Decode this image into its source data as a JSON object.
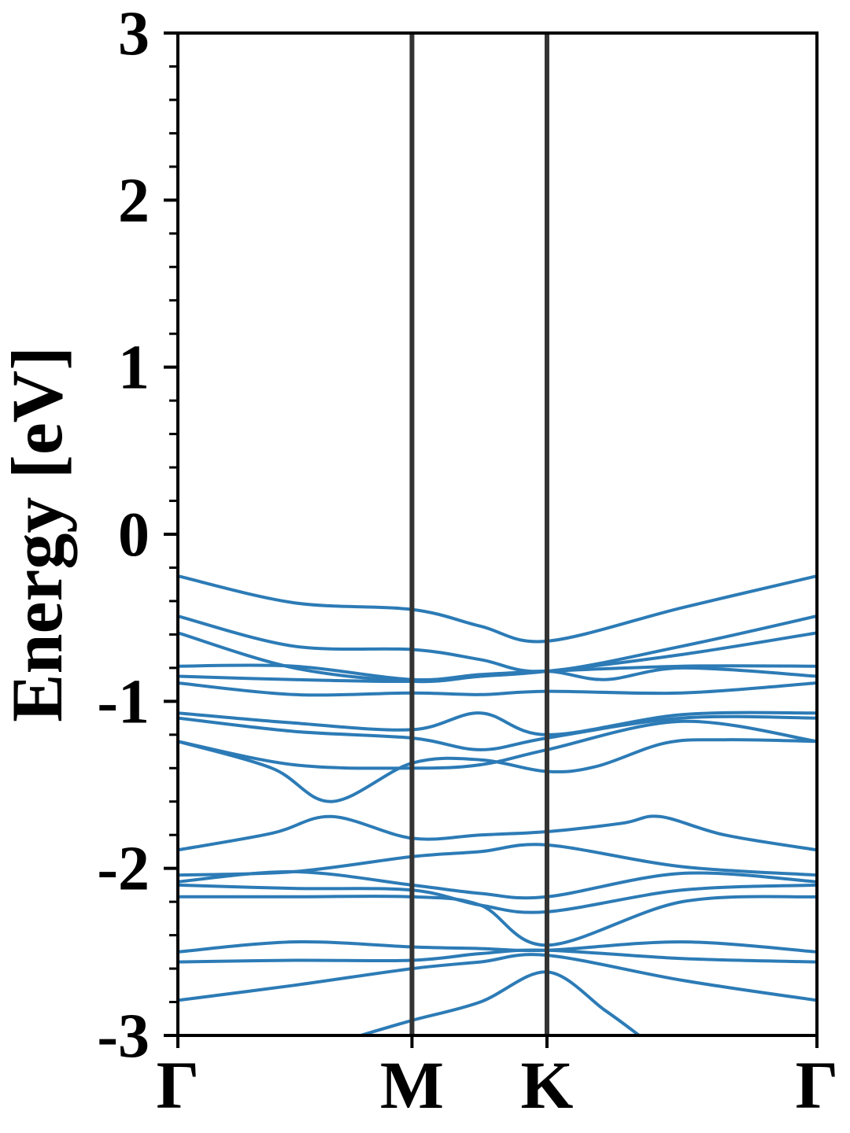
{
  "chart_data": {
    "type": "line",
    "title": "",
    "xlabel": "",
    "ylabel": "Energy [eV]",
    "ylim": [
      -3,
      3
    ],
    "y_major_ticks": [
      -3,
      -2,
      -1,
      0,
      1,
      2,
      3
    ],
    "y_tick_labels": [
      "-3",
      "-2",
      "-1",
      "0",
      "1",
      "2",
      "3"
    ],
    "y_minor_step": 0.2,
    "x_range": [
      0,
      3.74
    ],
    "k_points": [
      {
        "label": "Γ",
        "x": 0
      },
      {
        "label": "M",
        "x": 1.37
      },
      {
        "label": "K",
        "x": 2.16
      },
      {
        "label": "Γ",
        "x": 3.74
      }
    ],
    "grid": false,
    "legend": "none",
    "line_color": "#2c7bb6",
    "divider_color": "#333333",
    "series": [
      {
        "x": [
          0,
          0.68,
          1.37,
          1.77,
          2.16,
          2.95,
          3.74
        ],
        "values": [
          -0.25,
          -0.41,
          -0.45,
          -0.55,
          -0.64,
          -0.44,
          -0.25
        ]
      },
      {
        "x": [
          0,
          0.68,
          1.37,
          1.77,
          2.16,
          2.95,
          3.74
        ],
        "values": [
          -0.49,
          -0.67,
          -0.69,
          -0.75,
          -0.82,
          -0.67,
          -0.49
        ]
      },
      {
        "x": [
          0,
          0.68,
          1.37,
          1.77,
          2.16,
          2.95,
          3.74
        ],
        "values": [
          -0.59,
          -0.8,
          -0.88,
          -0.85,
          -0.82,
          -0.72,
          -0.59
        ]
      },
      {
        "x": [
          0,
          0.68,
          1.37,
          1.77,
          2.16,
          2.95,
          3.74
        ],
        "values": [
          -0.79,
          -0.79,
          -0.87,
          -0.84,
          -0.82,
          -0.79,
          -0.79
        ]
      },
      {
        "x": [
          0,
          0.68,
          1.37,
          1.77,
          2.16,
          2.5,
          2.95,
          3.74
        ],
        "values": [
          -0.85,
          -0.87,
          -0.88,
          -0.85,
          -0.82,
          -0.87,
          -0.8,
          -0.85
        ]
      },
      {
        "x": [
          0,
          0.68,
          1.37,
          1.77,
          2.16,
          2.95,
          3.74
        ],
        "values": [
          -0.89,
          -0.96,
          -0.95,
          -0.96,
          -0.94,
          -0.95,
          -0.89
        ]
      },
      {
        "x": [
          0,
          0.68,
          1.37,
          1.77,
          2.16,
          2.95,
          3.74
        ],
        "values": [
          -1.07,
          -1.13,
          -1.17,
          -1.07,
          -1.2,
          -1.08,
          -1.07
        ]
      },
      {
        "x": [
          0,
          0.68,
          1.37,
          1.77,
          2.16,
          2.95,
          3.74
        ],
        "values": [
          -1.1,
          -1.18,
          -1.22,
          -1.29,
          -1.22,
          -1.1,
          -1.1
        ]
      },
      {
        "x": [
          0,
          0.68,
          1.37,
          1.77,
          2.16,
          2.95,
          3.74
        ],
        "values": [
          -1.24,
          -1.38,
          -1.4,
          -1.38,
          -1.29,
          -1.12,
          -1.24
        ]
      },
      {
        "x": [
          0,
          0.55,
          0.9,
          1.37,
          1.77,
          2.16,
          2.45,
          2.85,
          3.2,
          3.74
        ],
        "values": [
          -1.24,
          -1.4,
          -1.6,
          -1.37,
          -1.35,
          -1.42,
          -1.39,
          -1.25,
          -1.23,
          -1.24
        ]
      },
      {
        "x": [
          0,
          0.55,
          0.9,
          1.37,
          1.77,
          2.16,
          2.6,
          2.82,
          3.2,
          3.74
        ],
        "values": [
          -1.89,
          -1.79,
          -1.69,
          -1.82,
          -1.8,
          -1.78,
          -1.73,
          -1.69,
          -1.8,
          -1.89
        ]
      },
      {
        "x": [
          0,
          0.68,
          1.37,
          1.77,
          2.16,
          2.95,
          3.74
        ],
        "values": [
          -2.04,
          -2.02,
          -1.93,
          -1.9,
          -1.86,
          -1.99,
          -2.04
        ]
      },
      {
        "x": [
          0,
          0.68,
          1.37,
          1.77,
          2.16,
          2.95,
          3.74
        ],
        "values": [
          -2.08,
          -2.02,
          -2.1,
          -2.15,
          -2.17,
          -2.03,
          -2.08
        ]
      },
      {
        "x": [
          0,
          0.68,
          1.37,
          1.77,
          2.16,
          2.95,
          3.74
        ],
        "values": [
          -2.1,
          -2.12,
          -2.13,
          -2.22,
          -2.26,
          -2.13,
          -2.1
        ]
      },
      {
        "x": [
          0,
          0.68,
          1.37,
          1.77,
          2.16,
          2.95,
          3.74
        ],
        "values": [
          -2.17,
          -2.17,
          -2.17,
          -2.22,
          -2.46,
          -2.2,
          -2.17
        ]
      },
      {
        "x": [
          0,
          0.68,
          1.37,
          1.77,
          2.16,
          2.95,
          3.74
        ],
        "values": [
          -2.5,
          -2.44,
          -2.47,
          -2.48,
          -2.49,
          -2.44,
          -2.5
        ]
      },
      {
        "x": [
          0,
          0.68,
          1.37,
          1.77,
          2.16,
          2.95,
          3.74
        ],
        "values": [
          -2.56,
          -2.55,
          -2.55,
          -2.51,
          -2.49,
          -2.54,
          -2.56
        ]
      },
      {
        "x": [
          0,
          0.68,
          1.37,
          1.77,
          2.16,
          2.95,
          3.74
        ],
        "values": [
          -2.79,
          -2.7,
          -2.6,
          -2.56,
          -2.52,
          -2.67,
          -2.79
        ]
      },
      {
        "x": [
          1.07,
          1.37,
          1.77,
          2.16,
          2.5,
          2.7
        ],
        "values": [
          -3.0,
          -2.91,
          -2.8,
          -2.62,
          -2.85,
          -3.0
        ]
      }
    ]
  }
}
